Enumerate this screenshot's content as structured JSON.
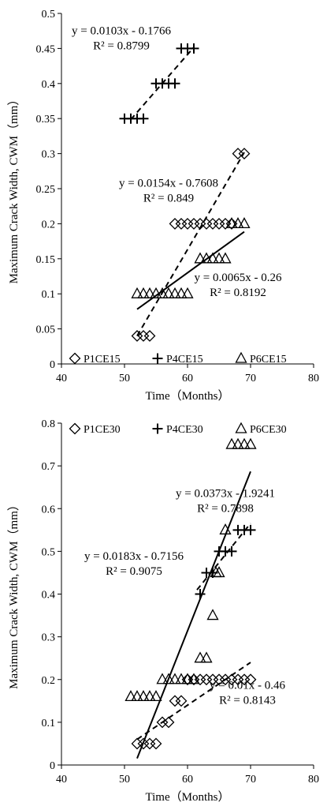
{
  "chart_data": [
    {
      "type": "scatter",
      "xlabel": "Time（Months）",
      "ylabel": "Maximum Crack Width, CWM（mm）",
      "xlim": [
        40,
        80
      ],
      "ylim": [
        0,
        0.5
      ],
      "xticks": [
        40,
        50,
        60,
        70,
        80
      ],
      "yticks": [
        0,
        0.05,
        0.1,
        0.15,
        0.2,
        0.25,
        0.3,
        0.35,
        0.4,
        0.45,
        0.5
      ],
      "grid": false,
      "legend": "bottom-left",
      "series": [
        {
          "name": "P1CE15",
          "marker": "diamond",
          "x": [
            52,
            53,
            54,
            58,
            59,
            60,
            61,
            62,
            63,
            64,
            65,
            66,
            67,
            68,
            69
          ],
          "y": [
            0.04,
            0.04,
            0.04,
            0.2,
            0.2,
            0.2,
            0.2,
            0.2,
            0.2,
            0.2,
            0.2,
            0.2,
            0.2,
            0.3,
            0.3
          ],
          "trend": {
            "slope": 0.0154,
            "intercept": -0.7608,
            "x": [
              52,
              69
            ],
            "style": "dashed"
          }
        },
        {
          "name": "P4CE15",
          "marker": "plus",
          "x": [
            50,
            51,
            52,
            53,
            55,
            56,
            57,
            58,
            59,
            60,
            61
          ],
          "y": [
            0.35,
            0.35,
            0.35,
            0.35,
            0.4,
            0.4,
            0.4,
            0.4,
            0.45,
            0.45,
            0.45
          ],
          "trend": {
            "slope": 0.0103,
            "intercept": -0.1766,
            "x": [
              51,
              61
            ],
            "style": "dashed"
          }
        },
        {
          "name": "P6CE15",
          "marker": "triangle",
          "x": [
            52,
            53,
            54,
            55,
            56,
            57,
            58,
            59,
            60,
            62,
            63,
            64,
            65,
            66,
            67,
            68,
            69
          ],
          "y": [
            0.1,
            0.1,
            0.1,
            0.1,
            0.1,
            0.1,
            0.1,
            0.1,
            0.1,
            0.15,
            0.15,
            0.15,
            0.15,
            0.15,
            0.2,
            0.2,
            0.2
          ],
          "trend": {
            "slope": 0.0065,
            "intercept": -0.26,
            "x": [
              52,
              69
            ],
            "style": "solid"
          }
        }
      ],
      "annotations": [
        {
          "lines": [
            "y = 0.0103x - 0.1766",
            "R² = 0.8799"
          ],
          "x": 49.5,
          "y": 0.47
        },
        {
          "lines": [
            "y = 0.0154x - 0.7608",
            "R² = 0.849"
          ],
          "x": 57,
          "y": 0.253
        },
        {
          "lines": [
            "y = 0.0065x - 0.26",
            "R² = 0.8192"
          ],
          "x": 68,
          "y": 0.118
        }
      ]
    },
    {
      "type": "scatter",
      "xlabel": "Time（Months）",
      "ylabel": "Maximum Crack Width, CWM（mm）",
      "xlim": [
        40,
        80
      ],
      "ylim": [
        0,
        0.8
      ],
      "xticks": [
        40,
        50,
        60,
        70,
        80
      ],
      "yticks": [
        0,
        0.1,
        0.2,
        0.3,
        0.4,
        0.5,
        0.6,
        0.7,
        0.8
      ],
      "grid": false,
      "legend": "top",
      "series": [
        {
          "name": "P1CE30",
          "marker": "diamond",
          "x": [
            52,
            53,
            54,
            55,
            56,
            57,
            58,
            59,
            60,
            61,
            62,
            63,
            64,
            65,
            66,
            67,
            68,
            69,
            70
          ],
          "y": [
            0.05,
            0.05,
            0.05,
            0.05,
            0.1,
            0.1,
            0.15,
            0.15,
            0.2,
            0.2,
            0.2,
            0.2,
            0.2,
            0.2,
            0.2,
            0.2,
            0.2,
            0.2,
            0.2
          ],
          "trend": {
            "slope": 0.01,
            "intercept": -0.46,
            "x": [
              52,
              70
            ],
            "style": "dashed"
          }
        },
        {
          "name": "P4CE30",
          "marker": "plus",
          "x": [
            62,
            63,
            64,
            65,
            66,
            67,
            68,
            69,
            70
          ],
          "y": [
            0.4,
            0.45,
            0.45,
            0.5,
            0.5,
            0.5,
            0.55,
            0.55,
            0.55
          ],
          "trend": {
            "slope": 0.0183,
            "intercept": -0.7156,
            "x": [
              61.5,
              70
            ],
            "style": "dashed"
          }
        },
        {
          "name": "P6CE30",
          "marker": "triangle",
          "x": [
            51,
            52,
            53,
            54,
            55,
            56,
            57,
            58,
            59,
            60,
            61,
            62,
            63,
            64,
            64.5,
            65,
            66,
            67,
            68,
            69,
            70
          ],
          "y": [
            0.16,
            0.16,
            0.16,
            0.16,
            0.16,
            0.2,
            0.2,
            0.2,
            0.2,
            0.2,
            0.2,
            0.25,
            0.25,
            0.35,
            0.45,
            0.45,
            0.55,
            0.75,
            0.75,
            0.75,
            0.75
          ],
          "trend": {
            "slope": 0.0373,
            "intercept": -1.9241,
            "x": [
              52,
              70
            ],
            "style": "solid"
          }
        }
      ],
      "annotations": [
        {
          "lines": [
            "y = 0.0373x - 1.9241",
            "R² = 0.7898"
          ],
          "x": 66,
          "y": 0.627
        },
        {
          "lines": [
            "y = 0.0183x - 0.7156",
            "R² = 0.9075"
          ],
          "x": 51.5,
          "y": 0.48
        },
        {
          "lines": [
            "y = 0.01x - 0.46",
            "R² = 0.8143"
          ],
          "x": 69.5,
          "y": 0.178
        }
      ]
    }
  ]
}
